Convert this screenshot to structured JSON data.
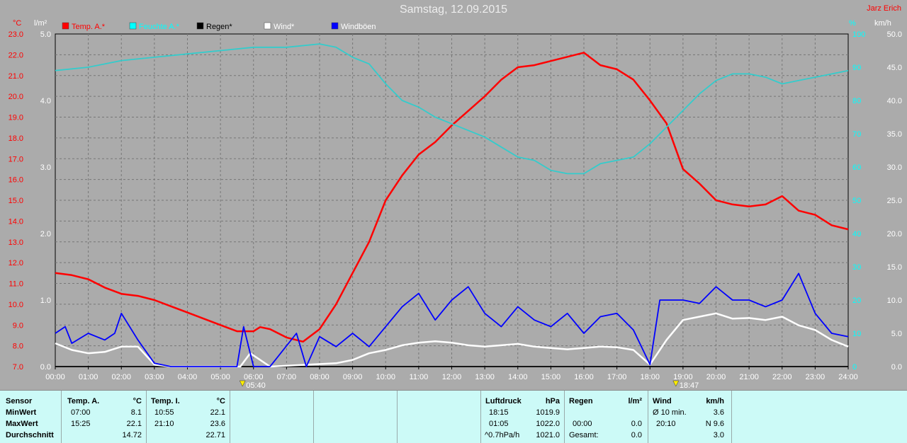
{
  "header": {
    "title": "Samstag, 12.09.2015",
    "author": "Jarz Erich"
  },
  "axes": {
    "left_temp_unit": "°C",
    "left_rain_unit": "l/m²",
    "right_humidity_unit": "%",
    "right_wind_unit": "km/h",
    "temp_ticks": [
      "23.0",
      "22.0",
      "21.0",
      "20.0",
      "19.0",
      "18.0",
      "17.0",
      "16.0",
      "15.0",
      "14.0",
      "13.0",
      "12.0",
      "11.0",
      "10.0",
      "9.0",
      "8.0",
      "7.0"
    ],
    "rain_ticks": [
      "5.0",
      "4.0",
      "3.0",
      "2.0",
      "1.0",
      "0.0"
    ],
    "humidity_ticks": [
      "100",
      "90",
      "80",
      "70",
      "60",
      "50",
      "40",
      "30",
      "20",
      "10",
      "0"
    ],
    "wind_ticks": [
      "50.0",
      "45.0",
      "40.0",
      "35.0",
      "30.0",
      "25.0",
      "20.0",
      "15.0",
      "10.0",
      "5.0",
      "0.0"
    ],
    "time_ticks": [
      "00:00",
      "01:00",
      "02:00",
      "03:00",
      "04:00",
      "05:00",
      "06:00",
      "07:00",
      "08:00",
      "09:00",
      "10:00",
      "11:00",
      "12:00",
      "13:00",
      "14:00",
      "15:00",
      "16:00",
      "17:00",
      "18:00",
      "19:00",
      "20:00",
      "21:00",
      "22:00",
      "23:00",
      "24:00"
    ],
    "sunrise": "05:40",
    "sunset": "18:47"
  },
  "legend": [
    {
      "label": "Temp. A.*",
      "color": "#ff0000",
      "text_color": "#ff0000"
    },
    {
      "label": "Feuchte A.*",
      "color": "#00ffff",
      "text_color": "#00ffff"
    },
    {
      "label": "Regen*",
      "color": "#000000",
      "text_color": "#000000"
    },
    {
      "label": "Wind*",
      "color": "#ffffff",
      "text_color": "#ffffff"
    },
    {
      "label": "Windböen",
      "color": "#0000ff",
      "text_color": "#ffffff"
    }
  ],
  "chart_data": {
    "type": "line",
    "title": "Samstag, 12.09.2015",
    "x_unit": "hour",
    "xlim": [
      0,
      24
    ],
    "series": [
      {
        "name": "Temp. A.*",
        "axis": "temp",
        "ylim": [
          7,
          23
        ],
        "color": "#ff0000",
        "points": [
          [
            0,
            11.5
          ],
          [
            0.5,
            11.4
          ],
          [
            1,
            11.2
          ],
          [
            1.5,
            10.8
          ],
          [
            2,
            10.5
          ],
          [
            2.5,
            10.4
          ],
          [
            3,
            10.2
          ],
          [
            3.5,
            9.9
          ],
          [
            4,
            9.6
          ],
          [
            4.5,
            9.3
          ],
          [
            5,
            9.0
          ],
          [
            5.5,
            8.7
          ],
          [
            6,
            8.7
          ],
          [
            6.2,
            8.9
          ],
          [
            6.5,
            8.8
          ],
          [
            7,
            8.4
          ],
          [
            7.5,
            8.2
          ],
          [
            8,
            8.8
          ],
          [
            8.5,
            10.0
          ],
          [
            9,
            11.5
          ],
          [
            9.5,
            13.0
          ],
          [
            10,
            15.0
          ],
          [
            10.5,
            16.2
          ],
          [
            11,
            17.2
          ],
          [
            11.5,
            17.8
          ],
          [
            12,
            18.6
          ],
          [
            12.5,
            19.3
          ],
          [
            13,
            20.0
          ],
          [
            13.5,
            20.8
          ],
          [
            14,
            21.4
          ],
          [
            14.5,
            21.5
          ],
          [
            15,
            21.7
          ],
          [
            15.5,
            21.9
          ],
          [
            16,
            22.1
          ],
          [
            16.5,
            21.5
          ],
          [
            17,
            21.3
          ],
          [
            17.5,
            20.8
          ],
          [
            18,
            19.8
          ],
          [
            18.5,
            18.7
          ],
          [
            19,
            16.5
          ],
          [
            19.5,
            15.8
          ],
          [
            20,
            15.0
          ],
          [
            20.5,
            14.8
          ],
          [
            21,
            14.7
          ],
          [
            21.5,
            14.8
          ],
          [
            22,
            15.2
          ],
          [
            22.5,
            14.5
          ],
          [
            23,
            14.3
          ],
          [
            23.5,
            13.8
          ],
          [
            24,
            13.6
          ]
        ]
      },
      {
        "name": "Feuchte A.*",
        "axis": "humidity",
        "ylim": [
          0,
          100
        ],
        "color": "#33cccc",
        "points": [
          [
            0,
            89
          ],
          [
            1,
            90
          ],
          [
            2,
            92
          ],
          [
            3,
            93
          ],
          [
            4,
            94
          ],
          [
            5,
            95
          ],
          [
            6,
            96
          ],
          [
            7,
            96
          ],
          [
            8,
            97
          ],
          [
            8.5,
            96
          ],
          [
            9,
            93
          ],
          [
            9.5,
            91
          ],
          [
            10,
            85
          ],
          [
            10.5,
            80
          ],
          [
            11,
            78
          ],
          [
            11.5,
            75
          ],
          [
            12,
            73
          ],
          [
            12.5,
            71
          ],
          [
            13,
            69
          ],
          [
            13.5,
            66
          ],
          [
            14,
            63
          ],
          [
            14.5,
            62
          ],
          [
            15,
            59
          ],
          [
            15.5,
            58
          ],
          [
            16,
            58
          ],
          [
            16.5,
            61
          ],
          [
            17,
            62
          ],
          [
            17.5,
            63
          ],
          [
            18,
            67
          ],
          [
            18.5,
            72
          ],
          [
            19,
            77
          ],
          [
            19.5,
            82
          ],
          [
            20,
            86
          ],
          [
            20.5,
            88
          ],
          [
            21,
            88
          ],
          [
            21.5,
            87
          ],
          [
            22,
            85
          ],
          [
            22.5,
            86
          ],
          [
            23,
            87
          ],
          [
            24,
            89
          ]
        ]
      },
      {
        "name": "Regen*",
        "axis": "rain",
        "ylim": [
          0,
          5
        ],
        "color": "#000000",
        "points": [
          [
            0,
            0
          ],
          [
            24,
            0
          ]
        ]
      },
      {
        "name": "Wind*",
        "axis": "wind",
        "ylim": [
          0,
          50
        ],
        "color": "#ffffff",
        "points": [
          [
            0,
            3.5
          ],
          [
            0.5,
            2.5
          ],
          [
            1,
            2.0
          ],
          [
            1.5,
            2.2
          ],
          [
            2,
            3.0
          ],
          [
            2.5,
            3.0
          ],
          [
            3,
            0.3
          ],
          [
            3.5,
            0
          ],
          [
            5.6,
            0
          ],
          [
            5.9,
            2.0
          ],
          [
            6.2,
            1.0
          ],
          [
            6.5,
            0
          ],
          [
            8.5,
            0.5
          ],
          [
            9,
            1.0
          ],
          [
            9.5,
            2.0
          ],
          [
            10,
            2.5
          ],
          [
            10.5,
            3.2
          ],
          [
            11,
            3.6
          ],
          [
            11.5,
            3.8
          ],
          [
            12,
            3.6
          ],
          [
            12.5,
            3.2
          ],
          [
            13,
            3.0
          ],
          [
            13.5,
            3.2
          ],
          [
            14,
            3.4
          ],
          [
            14.5,
            3.0
          ],
          [
            15,
            2.8
          ],
          [
            15.5,
            2.6
          ],
          [
            16,
            2.8
          ],
          [
            16.5,
            3.0
          ],
          [
            17,
            2.9
          ],
          [
            17.5,
            2.5
          ],
          [
            18,
            0.3
          ],
          [
            18.5,
            4.0
          ],
          [
            19,
            7.0
          ],
          [
            19.5,
            7.5
          ],
          [
            20,
            8.0
          ],
          [
            20.5,
            7.2
          ],
          [
            21,
            7.3
          ],
          [
            21.5,
            7.0
          ],
          [
            22,
            7.5
          ],
          [
            22.5,
            6.2
          ],
          [
            23,
            5.5
          ],
          [
            23.5,
            4.0
          ],
          [
            24,
            3.0
          ]
        ]
      },
      {
        "name": "Windböen",
        "axis": "wind",
        "ylim": [
          0,
          50
        ],
        "color": "#0000ff",
        "points": [
          [
            0,
            5.0
          ],
          [
            0.3,
            6.0
          ],
          [
            0.5,
            3.5
          ],
          [
            1,
            5.0
          ],
          [
            1.5,
            4.0
          ],
          [
            1.8,
            5.0
          ],
          [
            2,
            8.0
          ],
          [
            2.5,
            4.0
          ],
          [
            3,
            0.5
          ],
          [
            3.5,
            0
          ],
          [
            5.5,
            0
          ],
          [
            5.7,
            6.0
          ],
          [
            6,
            0
          ],
          [
            6.5,
            0
          ],
          [
            7.3,
            5.0
          ],
          [
            7.6,
            0
          ],
          [
            8,
            4.5
          ],
          [
            8.5,
            3.0
          ],
          [
            9,
            5.0
          ],
          [
            9.5,
            3.0
          ],
          [
            10,
            6.0
          ],
          [
            10.5,
            9.0
          ],
          [
            11,
            11.0
          ],
          [
            11.5,
            7.0
          ],
          [
            12,
            10.0
          ],
          [
            12.5,
            12.0
          ],
          [
            13,
            8.0
          ],
          [
            13.5,
            6.0
          ],
          [
            14,
            9.0
          ],
          [
            14.5,
            7.0
          ],
          [
            15,
            6.0
          ],
          [
            15.5,
            8.0
          ],
          [
            16,
            5.0
          ],
          [
            16.5,
            7.5
          ],
          [
            17,
            8.0
          ],
          [
            17.5,
            5.5
          ],
          [
            18,
            0.3
          ],
          [
            18.3,
            10.0
          ],
          [
            19,
            10.0
          ],
          [
            19.5,
            9.5
          ],
          [
            20,
            12.0
          ],
          [
            20.5,
            10.0
          ],
          [
            21,
            10.0
          ],
          [
            21.5,
            9.0
          ],
          [
            22,
            10.0
          ],
          [
            22.5,
            14.0
          ],
          [
            23,
            8.0
          ],
          [
            23.5,
            5.0
          ],
          [
            24,
            4.5
          ]
        ]
      }
    ]
  },
  "table": {
    "sensor": {
      "header": "Sensor",
      "rows": [
        "MinWert",
        "MaxWert",
        "Durchschnitt"
      ]
    },
    "temp_a": {
      "header": "Temp. A.",
      "unit": "°C",
      "min_time": "07:00",
      "min": "8.1",
      "max_time": "15:25",
      "max": "22.1",
      "avg": "14.72"
    },
    "temp_i": {
      "header": "Temp. I.",
      "unit": "°C",
      "min_time": "10:55",
      "min": "22.1",
      "max_time": "21:10",
      "max": "23.6",
      "avg": "22.71"
    },
    "pressure": {
      "header": "Luftdruck",
      "unit": "hPa",
      "row1_time": "18:15",
      "row1": "1019.9",
      "row2_time": "01:05",
      "row2": "1022.0",
      "row3_time": "^0.7hPa/h",
      "row3": "1021.0"
    },
    "rain": {
      "header": "Regen",
      "unit": "l/m²",
      "row1": "",
      "row2_time": "00:00",
      "row2": "0.0",
      "row3_label": "Gesamt:",
      "row3": "0.0"
    },
    "wind": {
      "header": "Wind",
      "unit": "km/h",
      "row1_label": "Ø 10 min.",
      "row1": "3.6",
      "row2_time": "20:10",
      "row2": "N 9.6",
      "row3": "3.0"
    }
  }
}
